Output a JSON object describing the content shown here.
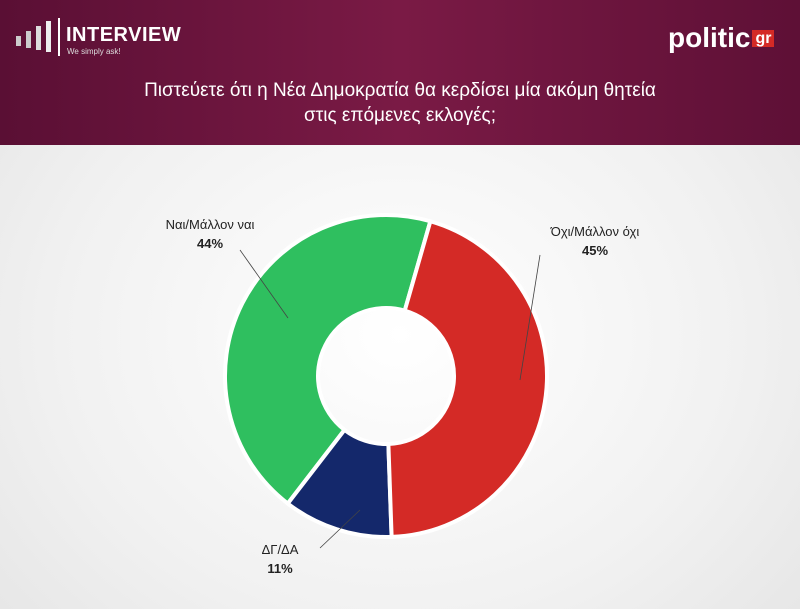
{
  "header": {
    "brand": "INTERVIEW",
    "tagline": "We simply ask!",
    "site": "politic",
    "site_suffix": "gr"
  },
  "chart_data": {
    "type": "donut",
    "title": "Πιστεύετε ότι η Νέα Δημοκρατία θα κερδίσει μία ακόμη θητεία στις επόμενες εκλογές;",
    "categories": [
      "Όχι/Μάλλον όχι",
      "ΔΓ/ΔΑ",
      "Ναι/Μάλλον ναι"
    ],
    "values": [
      45,
      11,
      44
    ],
    "value_labels": [
      "45%",
      "11%",
      "44%"
    ],
    "colors": [
      "#d42a26",
      "#14286b",
      "#2fbf5f"
    ]
  }
}
